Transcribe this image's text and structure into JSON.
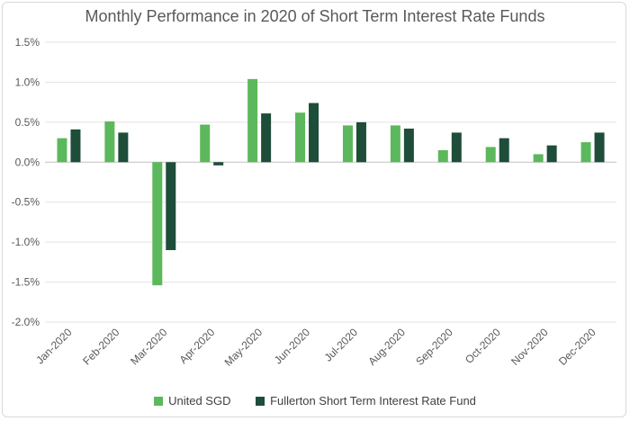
{
  "chart_data": {
    "type": "bar",
    "title": "Monthly Performance in 2020 of Short Term Interest Rate Funds",
    "categories": [
      "Jan-2020",
      "Feb-2020",
      "Mar-2020",
      "Apr-2020",
      "May-2020",
      "Jun-2020",
      "Jul-2020",
      "Aug-2020",
      "Sep-2020",
      "Oct-2020",
      "Nov-2020",
      "Dec-2020"
    ],
    "series": [
      {
        "name": "United SGD",
        "color": "#5cb85c",
        "values": [
          0.3,
          0.51,
          -1.54,
          0.47,
          1.04,
          0.62,
          0.46,
          0.46,
          0.15,
          0.19,
          0.1,
          0.25
        ]
      },
      {
        "name": "Fullerton Short Term Interest Rate Fund",
        "color": "#1e4d3a",
        "values": [
          0.41,
          0.37,
          -1.1,
          -0.04,
          0.61,
          0.74,
          0.5,
          0.42,
          0.37,
          0.3,
          0.21,
          0.37
        ]
      }
    ],
    "ylim": [
      -2.0,
      1.5
    ],
    "yticks": [
      1.5,
      1.0,
      0.5,
      0.0,
      -0.5,
      -1.0,
      -1.5,
      -2.0
    ],
    "ytick_labels": [
      "1.5%",
      "1.0%",
      "0.5%",
      "0.0%",
      "-0.5%",
      "-1.0%",
      "-1.5%",
      "-2.0%"
    ],
    "xlabel": "",
    "ylabel": "",
    "grid": true,
    "legend_position": "bottom"
  }
}
